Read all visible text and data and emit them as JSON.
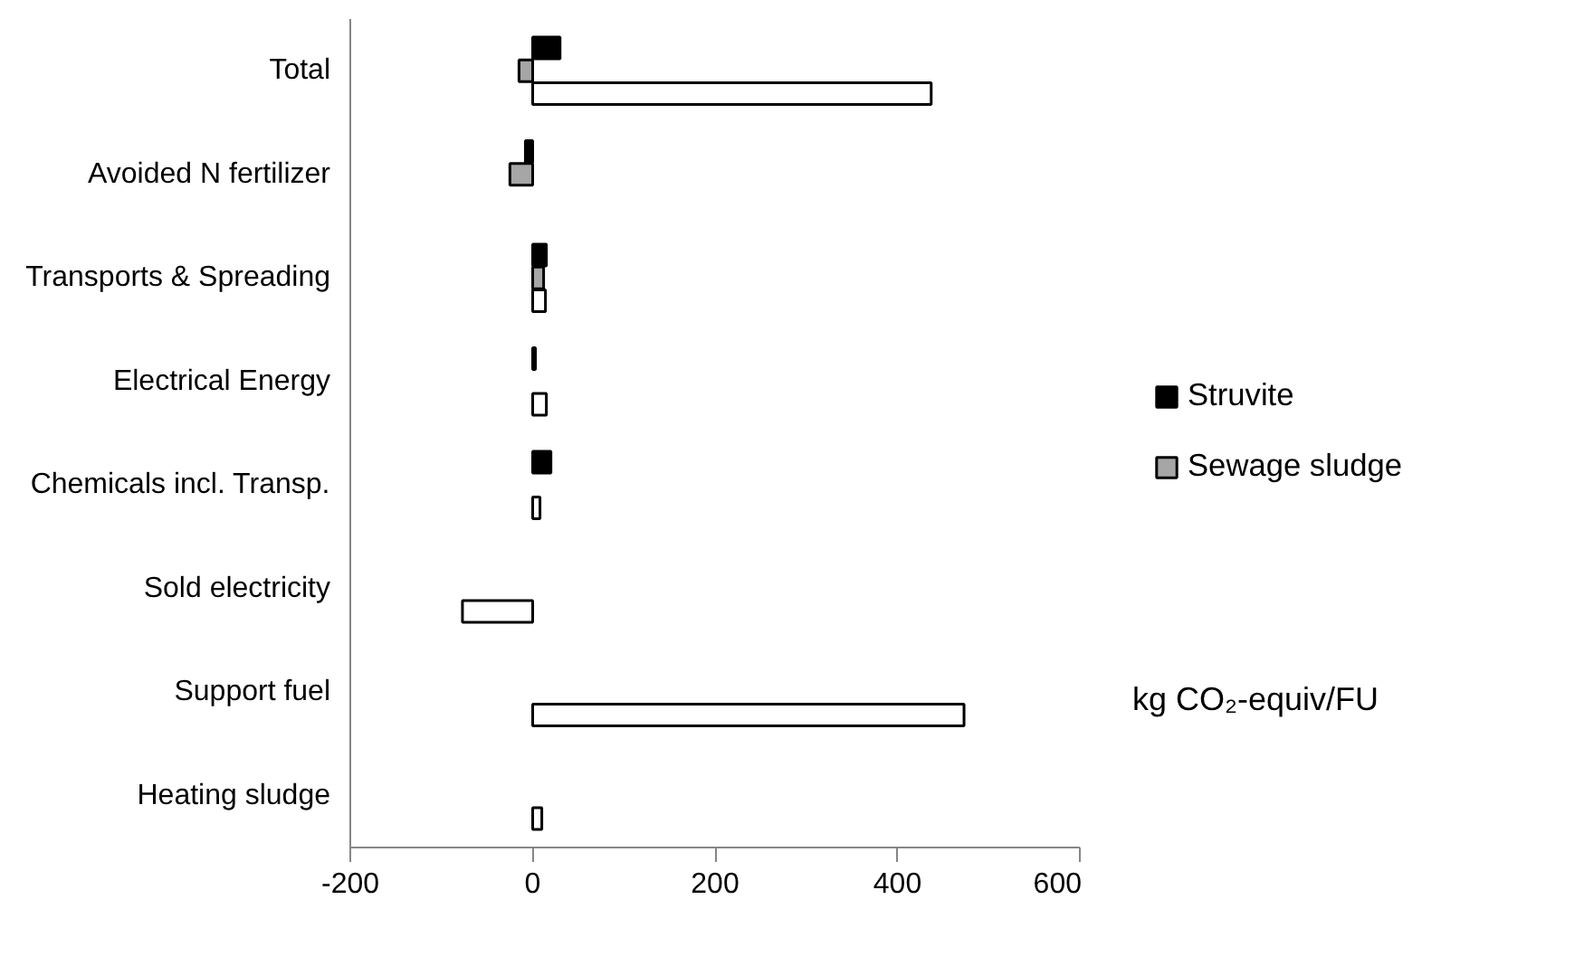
{
  "chart_data": {
    "type": "bar",
    "orientation": "horizontal",
    "categories": [
      "Total",
      "Avoided N fertilizer",
      "Transports & Spreading",
      "Electrical Energy",
      "Chemicals incl. Transp.",
      "Sold electricity",
      "Support fuel",
      "Heating sludge"
    ],
    "series": [
      {
        "name": "Struvite",
        "color": "#000000",
        "values": [
          30,
          -8,
          15,
          3,
          20,
          null,
          null,
          null
        ]
      },
      {
        "name": "Sewage sludge",
        "color": "#a6a6a6",
        "values": [
          -15,
          -25,
          12,
          null,
          null,
          null,
          null,
          null
        ]
      },
      {
        "color": "#ffffff",
        "values": [
          437,
          null,
          14,
          15,
          8,
          -77,
          473,
          10
        ]
      }
    ],
    "xlim": [
      -200,
      600
    ],
    "xticks": [
      -200,
      0,
      200,
      400,
      600
    ],
    "annotations": [
      "kg CO₂-equiv/FU"
    ],
    "grid": false,
    "legend": "right"
  }
}
